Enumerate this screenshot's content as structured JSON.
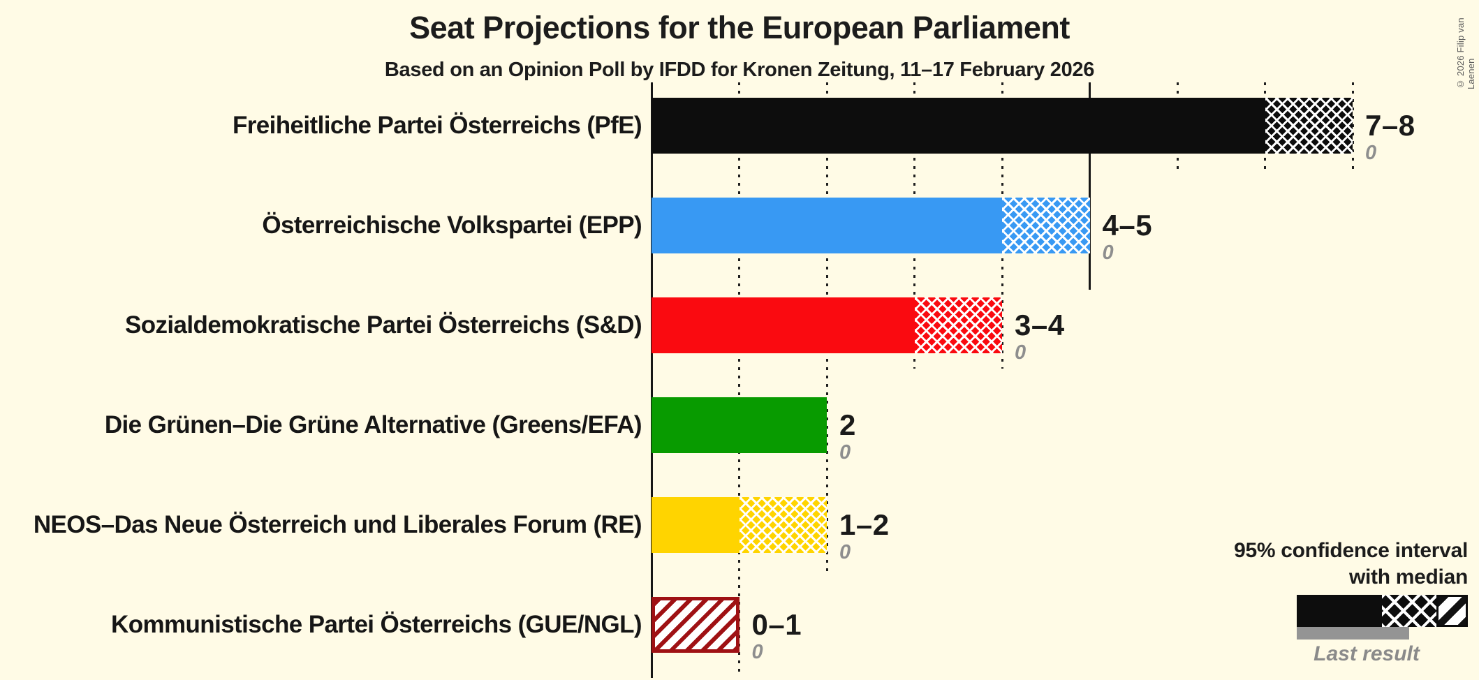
{
  "header": {
    "title": "Seat Projections for the European Parliament",
    "subtitle": "Based on an Opinion Poll by IFDD for Kronen Zeitung, 11–17 February 2026"
  },
  "copyright": "© 2026 Filip van Laenen",
  "legend": {
    "ci_line1": "95% confidence interval",
    "ci_line2": "with median",
    "last_result_label": "Last result"
  },
  "colors": {
    "background": "#FFFBE6",
    "pfe_black": "#0D0D0D",
    "ovp_blue": "#3899F3",
    "spo_red": "#FA0A10",
    "greens_green": "#089B00",
    "neos_yellow": "#FFD400",
    "kpo_darkred": "#9F1114",
    "last_result_gray": "#949494"
  },
  "chart_data": {
    "type": "bar",
    "orientation": "horizontal",
    "title": "Seat Projections for the European Parliament",
    "subtitle": "Based on an Opinion Poll by IFDD for Kronen Zeitung, 11–17 February 2026",
    "x_axis": {
      "unit": "seats",
      "min": 0,
      "max": 9,
      "minor_gridline_interval": 1,
      "major_gridline_interval": 5,
      "tick_labels_visible": false
    },
    "legend_position": "bottom-right",
    "bars": [
      {
        "party": "Freiheitliche Partei Österreichs (PfE)",
        "label": "7–8",
        "ci_low": 7,
        "ci_high": 8,
        "last_result": "0",
        "last_result_value": 0,
        "color": "#0D0D0D",
        "pattern": "solid+crosshatch"
      },
      {
        "party": "Österreichische Volkspartei (EPP)",
        "label": "4–5",
        "ci_low": 4,
        "ci_high": 5,
        "last_result": "0",
        "last_result_value": 0,
        "color": "#3899F3",
        "pattern": "solid+crosshatch"
      },
      {
        "party": "Sozialdemokratische Partei Österreichs (S&D)",
        "label": "3–4",
        "ci_low": 3,
        "ci_high": 4,
        "last_result": "0",
        "last_result_value": 0,
        "color": "#FA0A10",
        "pattern": "solid+crosshatch"
      },
      {
        "party": "Die Grünen–Die Grüne Alternative (Greens/EFA)",
        "label": "2",
        "ci_low": 2,
        "ci_high": 2,
        "last_result": "0",
        "last_result_value": 0,
        "color": "#089B00",
        "pattern": "solid"
      },
      {
        "party": "NEOS–Das Neue Österreich und Liberales Forum (RE)",
        "label": "1–2",
        "ci_low": 1,
        "ci_high": 2,
        "last_result": "0",
        "last_result_value": 0,
        "color": "#FFD400",
        "pattern": "solid+crosshatch"
      },
      {
        "party": "Kommunistische Partei Österreichs (GUE/NGL)",
        "label": "0–1",
        "ci_low": 0,
        "ci_high": 1,
        "last_result": "0",
        "last_result_value": 0,
        "color": "#9F1114",
        "pattern": "diagonal-stripes"
      }
    ]
  }
}
